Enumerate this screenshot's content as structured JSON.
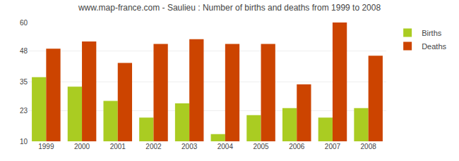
{
  "chart_data": {
    "type": "bar",
    "title": "www.map-france.com - Saulieu : Number of births and deaths from 1999 to 2008",
    "categories": [
      "1999",
      "2000",
      "2001",
      "2002",
      "2003",
      "2004",
      "2005",
      "2006",
      "2007",
      "2008"
    ],
    "series": [
      {
        "name": "Births",
        "color": "#aacc22",
        "values": [
          37,
          33,
          27,
          20,
          26,
          13,
          21,
          24,
          20,
          24
        ]
      },
      {
        "name": "Deaths",
        "color": "#cc4400",
        "values": [
          49,
          52,
          43,
          51,
          53,
          51,
          51,
          34,
          60,
          46
        ]
      }
    ],
    "ylim": [
      10,
      60
    ],
    "yticks": [
      10,
      23,
      35,
      48,
      60
    ],
    "grid": true,
    "legend": "upper right"
  }
}
